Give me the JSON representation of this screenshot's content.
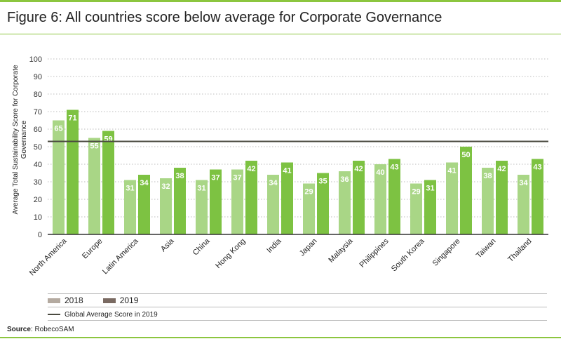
{
  "title": "Figure 6: All countries score below average for Corporate Governance",
  "source_label": "Source",
  "source_text": ": RobecoSAM",
  "legend": {
    "items": [
      {
        "label": "2018",
        "color": "#b4aaa0"
      },
      {
        "label": "2019",
        "color": "#7a6a62"
      }
    ],
    "avg_label": "Global Average Score in 2019"
  },
  "colors": {
    "bar_2018": "#a9d686",
    "bar_2019": "#7dc242",
    "avg_line": "#4a4a40",
    "grid": "#bdbdbd"
  },
  "chart_data": {
    "type": "bar",
    "categories": [
      "North America",
      "Europe",
      "Latin America",
      "Asia",
      "China",
      "Hong Kong",
      "India",
      "Japan",
      "Malaysia",
      "Philippines",
      "South Korea",
      "Singapore",
      "Taiwan",
      "Thailand"
    ],
    "series": [
      {
        "name": "2018",
        "values": [
          65,
          55,
          31,
          32,
          31,
          37,
          34,
          29,
          36,
          40,
          29,
          41,
          38,
          34
        ]
      },
      {
        "name": "2019",
        "values": [
          71,
          59,
          34,
          38,
          37,
          42,
          41,
          35,
          42,
          43,
          31,
          50,
          42,
          43
        ]
      }
    ],
    "global_average_2019": 53,
    "ylabel": "Average Total Sustainability Score for Corporate Governance",
    "ylim": [
      0,
      100
    ],
    "yticks": [
      0,
      10,
      20,
      30,
      40,
      50,
      60,
      70,
      80,
      90,
      100
    ],
    "grid": true,
    "legend_position": "bottom"
  }
}
